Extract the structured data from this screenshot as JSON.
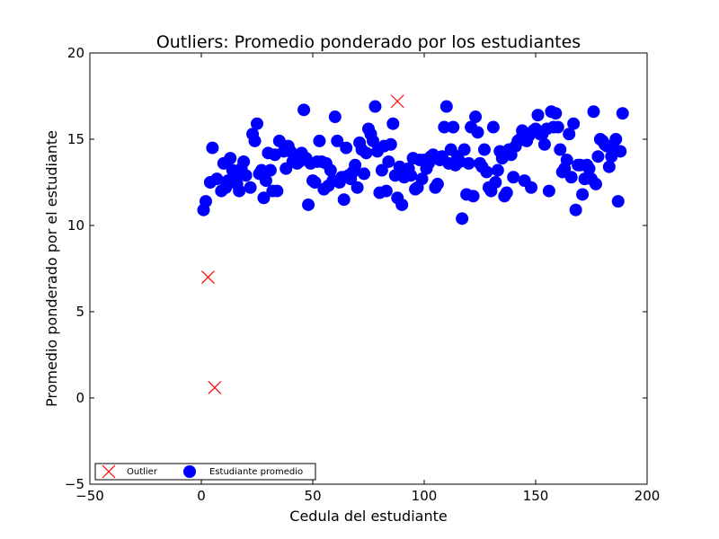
{
  "chart_data": {
    "type": "scatter",
    "title": "Outliers: Promedio ponderado por los estudiantes",
    "xlabel": "Cedula del estudiante",
    "ylabel": "Promedio ponderado por el estudiante",
    "xlim": [
      -50,
      200
    ],
    "ylim": [
      -5,
      20
    ],
    "xticks": [
      -50,
      0,
      50,
      100,
      150,
      200
    ],
    "yticks": [
      -5,
      0,
      5,
      10,
      15,
      20
    ],
    "xtick_labels": [
      "−50",
      "0",
      "50",
      "100",
      "150",
      "200"
    ],
    "ytick_labels": [
      "−5",
      "0",
      "5",
      "10",
      "15",
      "20"
    ],
    "grid": false,
    "legend": {
      "placement": "lower-left",
      "entries": [
        {
          "label": "Outlier",
          "marker": "x",
          "color": "#ff0000"
        },
        {
          "label": "Estudiante promedio",
          "marker": "o",
          "color": "#0000ff"
        }
      ]
    },
    "series": [
      {
        "name": "Outlier",
        "marker": "x",
        "color": "#ff0000",
        "points": [
          [
            3,
            7.0
          ],
          [
            6,
            0.6
          ],
          [
            88,
            17.2
          ]
        ]
      },
      {
        "name": "Estudiante promedio",
        "marker": "o",
        "color": "#0000ff",
        "points": [
          [
            1,
            10.9
          ],
          [
            2,
            11.4
          ],
          [
            4,
            12.5
          ],
          [
            5,
            14.5
          ],
          [
            7,
            12.7
          ],
          [
            9,
            12.0
          ],
          [
            10,
            13.6
          ],
          [
            11,
            12.2
          ],
          [
            12,
            12.6
          ],
          [
            13,
            13.9
          ],
          [
            14,
            13.2
          ],
          [
            15,
            12.8
          ],
          [
            16,
            12.4
          ],
          [
            17,
            12.0
          ],
          [
            18,
            13.3
          ],
          [
            19,
            13.7
          ],
          [
            20,
            12.9
          ],
          [
            22,
            12.2
          ],
          [
            23,
            15.3
          ],
          [
            24,
            14.9
          ],
          [
            25,
            15.9
          ],
          [
            26,
            13.0
          ],
          [
            27,
            13.2
          ],
          [
            28,
            11.6
          ],
          [
            29,
            12.6
          ],
          [
            30,
            14.2
          ],
          [
            31,
            13.2
          ],
          [
            32,
            12.0
          ],
          [
            33,
            14.1
          ],
          [
            34,
            12.0
          ],
          [
            35,
            14.9
          ],
          [
            37,
            14.3
          ],
          [
            38,
            13.3
          ],
          [
            39,
            14.6
          ],
          [
            40,
            14.3
          ],
          [
            41,
            13.7
          ],
          [
            42,
            13.9
          ],
          [
            43,
            13.6
          ],
          [
            44,
            13.7
          ],
          [
            45,
            14.2
          ],
          [
            46,
            16.7
          ],
          [
            47,
            13.9
          ],
          [
            48,
            11.2
          ],
          [
            49,
            13.6
          ],
          [
            50,
            12.6
          ],
          [
            51,
            12.5
          ],
          [
            52,
            13.7
          ],
          [
            53,
            14.9
          ],
          [
            54,
            13.7
          ],
          [
            55,
            12.1
          ],
          [
            56,
            13.6
          ],
          [
            57,
            12.3
          ],
          [
            58,
            13.2
          ],
          [
            59,
            12.6
          ],
          [
            60,
            16.3
          ],
          [
            61,
            14.9
          ],
          [
            62,
            12.5
          ],
          [
            63,
            12.8
          ],
          [
            64,
            11.5
          ],
          [
            65,
            14.5
          ],
          [
            66,
            12.9
          ],
          [
            67,
            12.7
          ],
          [
            68,
            13.1
          ],
          [
            69,
            13.5
          ],
          [
            70,
            12.2
          ],
          [
            71,
            14.8
          ],
          [
            72,
            14.4
          ],
          [
            73,
            13.0
          ],
          [
            74,
            14.2
          ],
          [
            75,
            15.6
          ],
          [
            76,
            15.3
          ],
          [
            77,
            14.9
          ],
          [
            78,
            16.9
          ],
          [
            79,
            14.3
          ],
          [
            80,
            11.9
          ],
          [
            81,
            13.2
          ],
          [
            82,
            14.6
          ],
          [
            83,
            12.0
          ],
          [
            84,
            13.7
          ],
          [
            85,
            14.7
          ],
          [
            86,
            15.9
          ],
          [
            87,
            12.9
          ],
          [
            88,
            11.6
          ],
          [
            89,
            13.4
          ],
          [
            90,
            11.2
          ],
          [
            91,
            12.8
          ],
          [
            92,
            13.1
          ],
          [
            93,
            13.3
          ],
          [
            94,
            12.9
          ],
          [
            95,
            13.9
          ],
          [
            96,
            12.1
          ],
          [
            97,
            12.2
          ],
          [
            98,
            13.8
          ],
          [
            99,
            12.7
          ],
          [
            100,
            13.8
          ],
          [
            101,
            13.3
          ],
          [
            102,
            13.6
          ],
          [
            103,
            14.0
          ],
          [
            104,
            14.1
          ],
          [
            105,
            12.2
          ],
          [
            106,
            12.4
          ],
          [
            107,
            13.8
          ],
          [
            108,
            14.0
          ],
          [
            109,
            15.7
          ],
          [
            110,
            16.9
          ],
          [
            111,
            13.6
          ],
          [
            112,
            14.4
          ],
          [
            113,
            15.7
          ],
          [
            114,
            13.5
          ],
          [
            115,
            14.0
          ],
          [
            116,
            13.7
          ],
          [
            117,
            10.4
          ],
          [
            118,
            14.4
          ],
          [
            119,
            11.8
          ],
          [
            120,
            13.6
          ],
          [
            121,
            15.7
          ],
          [
            122,
            11.7
          ],
          [
            123,
            16.3
          ],
          [
            124,
            15.4
          ],
          [
            125,
            13.6
          ],
          [
            126,
            13.4
          ],
          [
            127,
            14.4
          ],
          [
            128,
            13.1
          ],
          [
            129,
            12.2
          ],
          [
            130,
            12.0
          ],
          [
            131,
            15.7
          ],
          [
            132,
            12.5
          ],
          [
            133,
            13.2
          ],
          [
            134,
            14.3
          ],
          [
            135,
            13.9
          ],
          [
            136,
            11.7
          ],
          [
            137,
            11.9
          ],
          [
            138,
            14.4
          ],
          [
            139,
            14.1
          ],
          [
            140,
            12.8
          ],
          [
            141,
            14.6
          ],
          [
            142,
            14.9
          ],
          [
            143,
            15.0
          ],
          [
            144,
            15.5
          ],
          [
            145,
            12.6
          ],
          [
            146,
            14.9
          ],
          [
            147,
            15.2
          ],
          [
            148,
            12.2
          ],
          [
            149,
            15.5
          ],
          [
            150,
            15.6
          ],
          [
            151,
            16.4
          ],
          [
            152,
            15.3
          ],
          [
            153,
            15.3
          ],
          [
            154,
            14.7
          ],
          [
            155,
            15.6
          ],
          [
            156,
            12.0
          ],
          [
            157,
            16.6
          ],
          [
            158,
            15.7
          ],
          [
            159,
            16.5
          ],
          [
            160,
            15.7
          ],
          [
            161,
            14.4
          ],
          [
            162,
            13.1
          ],
          [
            163,
            13.3
          ],
          [
            164,
            13.8
          ],
          [
            165,
            15.3
          ],
          [
            166,
            12.8
          ],
          [
            167,
            15.9
          ],
          [
            168,
            10.9
          ],
          [
            169,
            13.5
          ],
          [
            170,
            13.5
          ],
          [
            171,
            11.8
          ],
          [
            172,
            12.7
          ],
          [
            173,
            13.5
          ],
          [
            174,
            13.3
          ],
          [
            175,
            12.7
          ],
          [
            176,
            16.6
          ],
          [
            177,
            12.4
          ],
          [
            178,
            14.0
          ],
          [
            179,
            15.0
          ],
          [
            180,
            14.9
          ],
          [
            181,
            14.7
          ],
          [
            182,
            14.6
          ],
          [
            183,
            13.4
          ],
          [
            184,
            14.0
          ],
          [
            185,
            14.5
          ],
          [
            186,
            15.0
          ],
          [
            187,
            11.4
          ],
          [
            188,
            14.3
          ],
          [
            189,
            16.5
          ]
        ]
      }
    ]
  }
}
